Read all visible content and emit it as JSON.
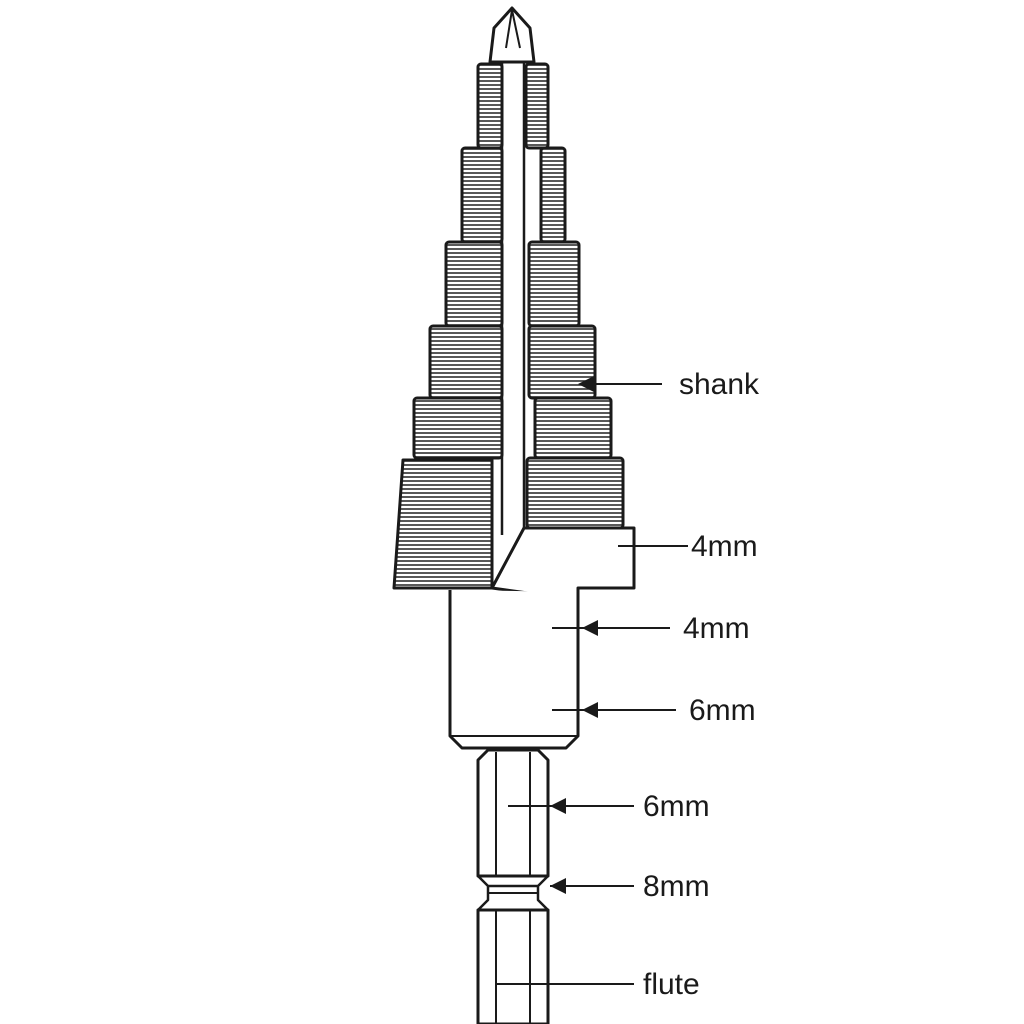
{
  "labels": [
    {
      "id": "shank",
      "text": "shank"
    },
    {
      "id": "step-a",
      "text": "4mm"
    },
    {
      "id": "step-b",
      "text": "4mm"
    },
    {
      "id": "step-c",
      "text": "6mm"
    },
    {
      "id": "step-d",
      "text": "6mm"
    },
    {
      "id": "step-e",
      "text": "8mm"
    },
    {
      "id": "flute",
      "text": "flute"
    }
  ],
  "colors": {
    "line": "#1a1a1a",
    "background": "#ffffff",
    "hatch": "#3a3a3a"
  }
}
